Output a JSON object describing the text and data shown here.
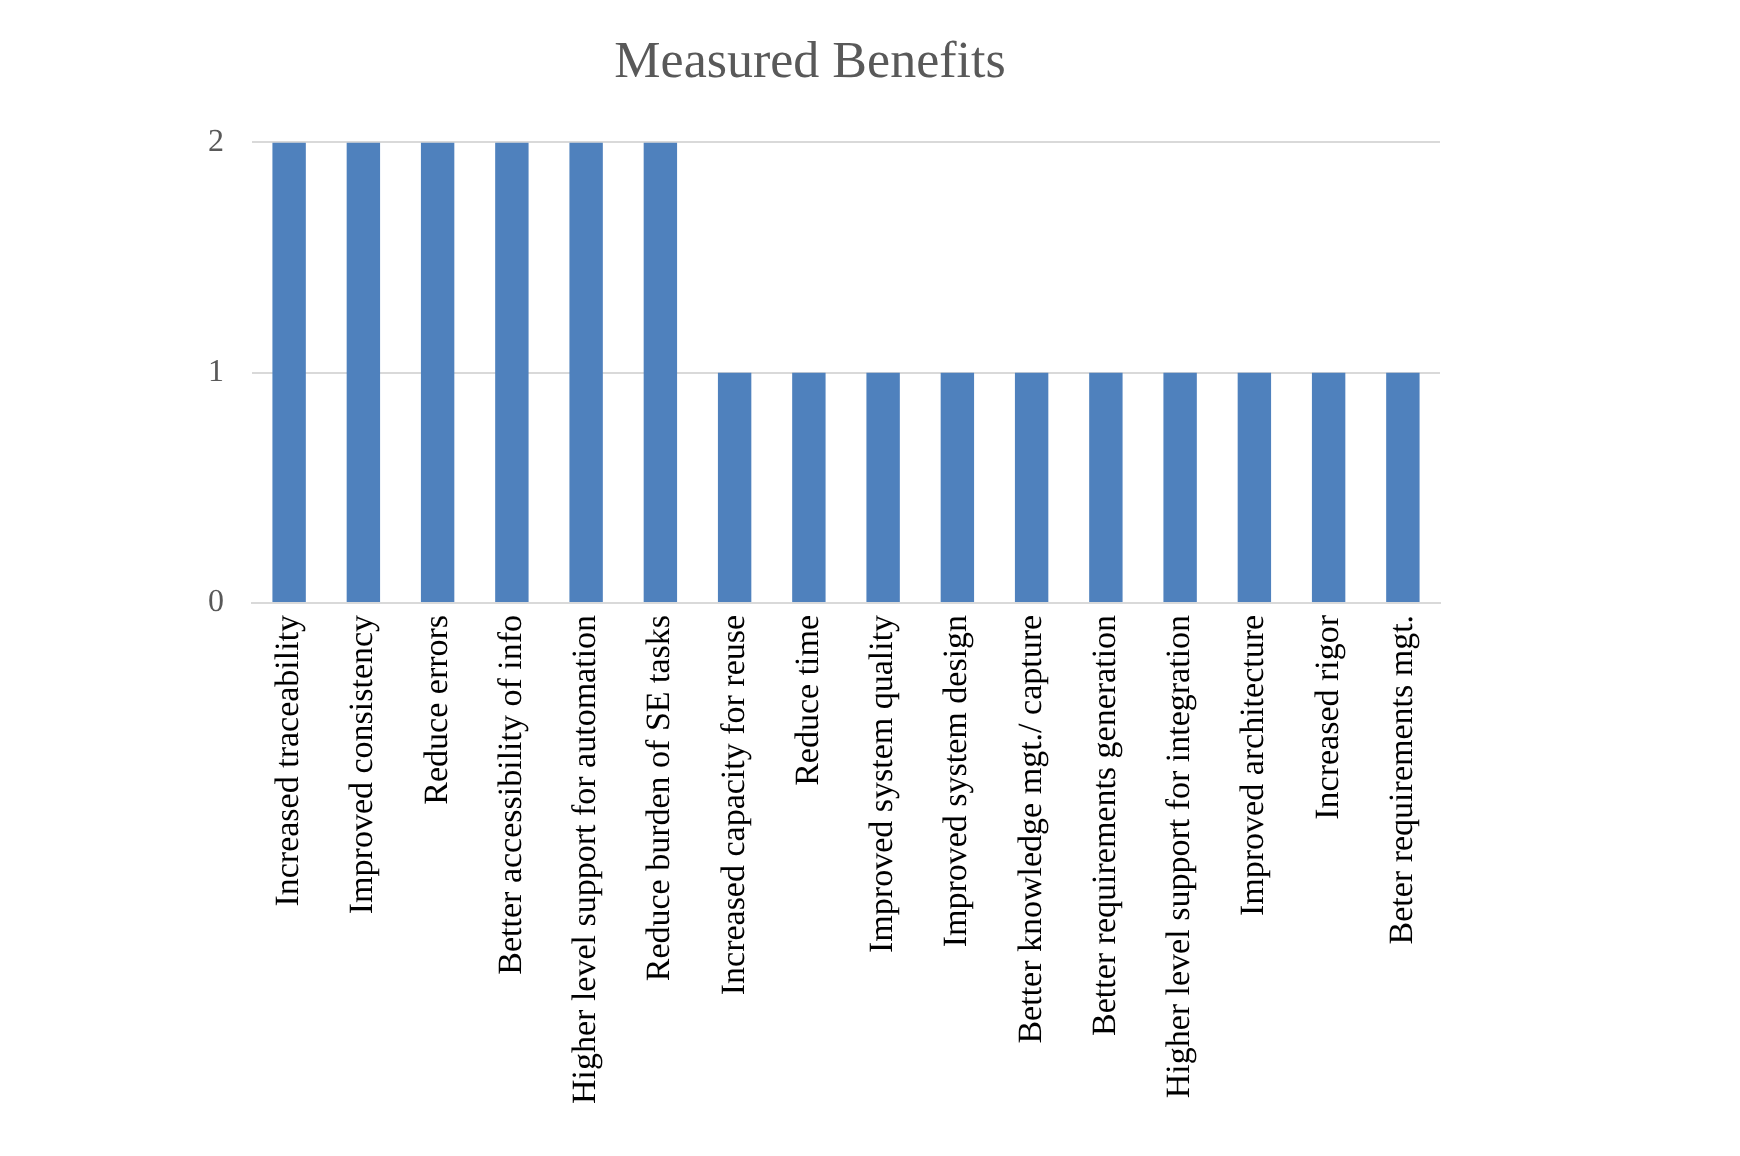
{
  "chart_data": {
    "type": "bar",
    "title": "Measured Benefits",
    "categories": [
      "Increased traceability",
      "Improved consistency",
      "Reduce errors",
      "Better accessibility of info",
      "Higher level support for automation",
      "Reduce burden of SE tasks",
      "Increased capacity for reuse",
      "Reduce time",
      "Improved system quality",
      "Improved system design",
      "Better knowledge mgt./ capture",
      "Better requirements generation",
      "Higher level support for integration",
      "Improved architecture",
      "Increased rigor",
      "Beter requirements mgt."
    ],
    "values": [
      2,
      2,
      2,
      2,
      2,
      2,
      1,
      1,
      1,
      1,
      1,
      1,
      1,
      1,
      1,
      1
    ],
    "color": "#4f81bd",
    "ylim": [
      0,
      2
    ],
    "yticks": [
      0,
      1,
      2
    ],
    "grid": "y",
    "legend": false
  }
}
